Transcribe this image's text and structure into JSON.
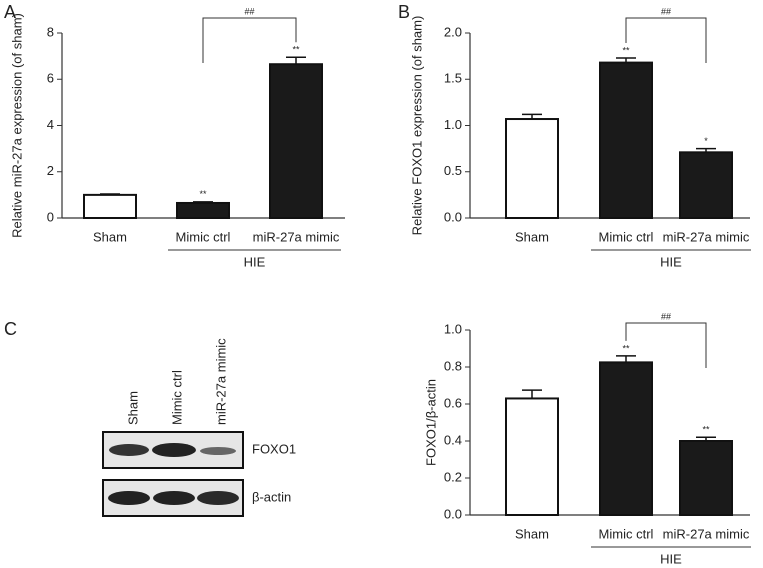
{
  "chart_data": [
    {
      "type": "bar",
      "panel": "A",
      "ylabel": "Relative miR-27a expression (of sham)",
      "categories": [
        "Sham",
        "Mimic ctrl",
        "miR-27a mimic"
      ],
      "values": [
        1.0,
        0.65,
        6.65
      ],
      "errors": [
        0.04,
        0.05,
        0.3
      ],
      "colors": [
        "#ffffff",
        "#1a1a1a",
        "#1a1a1a"
      ],
      "significance": [
        null,
        "**",
        "**"
      ],
      "bracket": {
        "between": [
          1,
          2
        ],
        "label": "##"
      },
      "group": {
        "between": [
          1,
          2
        ],
        "label": "HIE"
      },
      "ylim": [
        0,
        8
      ],
      "yticks": [
        0,
        2,
        4,
        6,
        8
      ]
    },
    {
      "type": "bar",
      "panel": "B",
      "ylabel": "Relative FOXO1 expression (of sham)",
      "categories": [
        "Sham",
        "Mimic ctrl",
        "miR-27a mimic"
      ],
      "values": [
        1.07,
        1.68,
        0.71
      ],
      "errors": [
        0.05,
        0.05,
        0.04
      ],
      "colors": [
        "#ffffff",
        "#1a1a1a",
        "#1a1a1a"
      ],
      "significance": [
        null,
        "**",
        "*"
      ],
      "bracket": {
        "between": [
          1,
          2
        ],
        "label": "##"
      },
      "group": {
        "between": [
          1,
          2
        ],
        "label": "HIE"
      },
      "ylim": [
        0,
        2
      ],
      "yticks": [
        {
          "value": 0,
          "label": "0.0"
        },
        0.5,
        {
          "value": 1,
          "label": "1.0"
        },
        1.5,
        {
          "value": 2,
          "label": "2.0"
        }
      ]
    },
    {
      "type": "bar",
      "ylabel": "FOXO1/β-actin",
      "categories": [
        "Sham",
        "Mimic ctrl",
        "miR-27a mimic"
      ],
      "values": [
        0.63,
        0.825,
        0.4
      ],
      "errors": [
        0.045,
        0.035,
        0.02
      ],
      "colors": [
        "#ffffff",
        "#1a1a1a",
        "#1a1a1a"
      ],
      "significance": [
        null,
        "**",
        "**"
      ],
      "bracket": {
        "between": [
          1,
          2
        ],
        "label": "##"
      },
      "group": {
        "between": [
          1,
          2
        ],
        "label": "HIE"
      },
      "ylim": [
        0,
        1
      ],
      "yticks": [
        {
          "value": 0,
          "label": "0.0"
        },
        0.2,
        0.4,
        0.6,
        0.8,
        {
          "value": 1,
          "label": "1.0"
        }
      ]
    }
  ],
  "blot": {
    "panel": "C",
    "lanes": [
      "Sham",
      "Mimic ctrl",
      "miR-27a mimic"
    ],
    "bands": [
      "FOXO1",
      "β-actin"
    ]
  }
}
